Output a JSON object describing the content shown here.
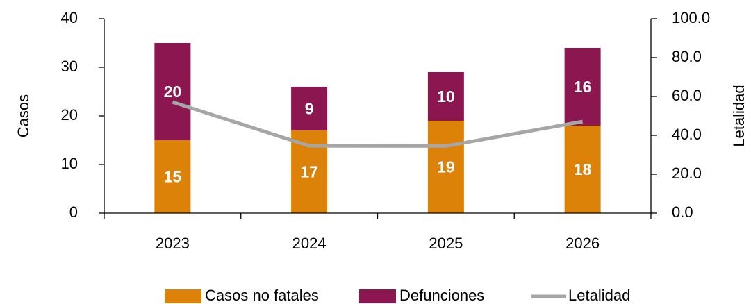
{
  "chart_data": {
    "type": "bar",
    "categories": [
      "2023",
      "2024",
      "2025",
      "2026"
    ],
    "series": [
      {
        "name": "Casos no fatales",
        "color": "#DC8209",
        "values": [
          15,
          17,
          19,
          18
        ]
      },
      {
        "name": "Defunciones",
        "color": "#8B1650",
        "values": [
          20,
          9,
          10,
          16
        ]
      },
      {
        "name": "Letalidad",
        "type": "line",
        "axis": "y2",
        "color": "#A6A6A6",
        "values": [
          57.1,
          34.6,
          34.5,
          47.1
        ]
      }
    ],
    "ylabel": "Casos",
    "y2label": "Letalidad",
    "ylim": [
      0,
      40
    ],
    "yticks": [
      0,
      10,
      20,
      30,
      40
    ],
    "y2lim": [
      0,
      100
    ],
    "y2ticks": [
      {
        "value": 0,
        "label": "0.0"
      },
      {
        "value": 20,
        "label": "20.0"
      },
      {
        "value": 40,
        "label": "40.0"
      },
      {
        "value": 60,
        "label": "60.0"
      },
      {
        "value": 80,
        "label": "80.0"
      },
      {
        "value": 100,
        "label": "100.0"
      }
    ],
    "legend": "bottom"
  }
}
